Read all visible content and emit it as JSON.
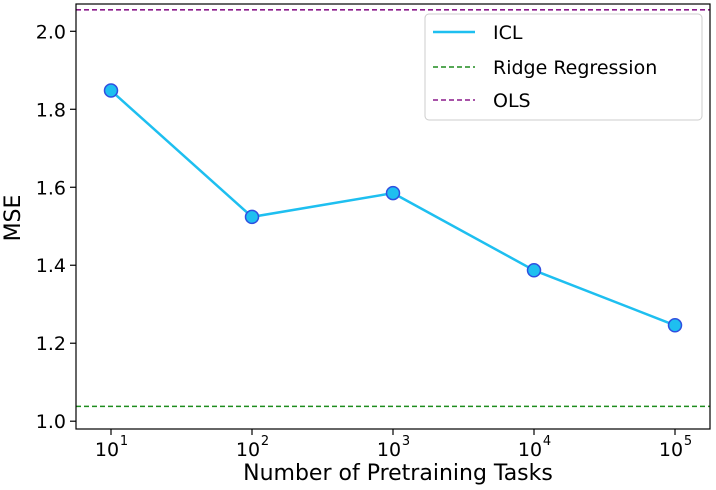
{
  "chart_data": {
    "type": "line",
    "title": "",
    "xlabel": "Number of Pretraining Tasks",
    "ylabel": "MSE",
    "xscale": "log",
    "x": [
      10,
      100,
      1000,
      10000,
      100000
    ],
    "x_ticks": [
      {
        "base": "10",
        "exp": "1"
      },
      {
        "base": "10",
        "exp": "2"
      },
      {
        "base": "10",
        "exp": "3"
      },
      {
        "base": "10",
        "exp": "4"
      },
      {
        "base": "10",
        "exp": "5"
      }
    ],
    "ylim": [
      0.98,
      2.07
    ],
    "y_ticks": [
      1.0,
      1.2,
      1.4,
      1.6,
      1.8,
      2.0
    ],
    "y_tick_labels": [
      "1.0",
      "1.2",
      "1.4",
      "1.6",
      "1.8",
      "2.0"
    ],
    "series": [
      {
        "name": "ICL",
        "values": [
          1.848,
          1.524,
          1.585,
          1.387,
          1.246
        ],
        "color": "#1EBFF0",
        "marker": "circle",
        "marker_edge": "#2F4FE0"
      }
    ],
    "hlines": [
      {
        "name": "Ridge Regression",
        "y": 1.038,
        "color": "#1E8C1E",
        "style": "dashed"
      },
      {
        "name": "OLS",
        "y": 2.055,
        "color": "#8B1A8B",
        "style": "dashed"
      }
    ],
    "legend": {
      "position": "top-right",
      "entries": [
        {
          "label": "ICL",
          "color": "#1EBFF0",
          "style": "solid"
        },
        {
          "label": "Ridge Regression",
          "color": "#1E8C1E",
          "style": "dashed"
        },
        {
          "label": "OLS",
          "color": "#8B1A8B",
          "style": "dashed"
        }
      ]
    }
  }
}
